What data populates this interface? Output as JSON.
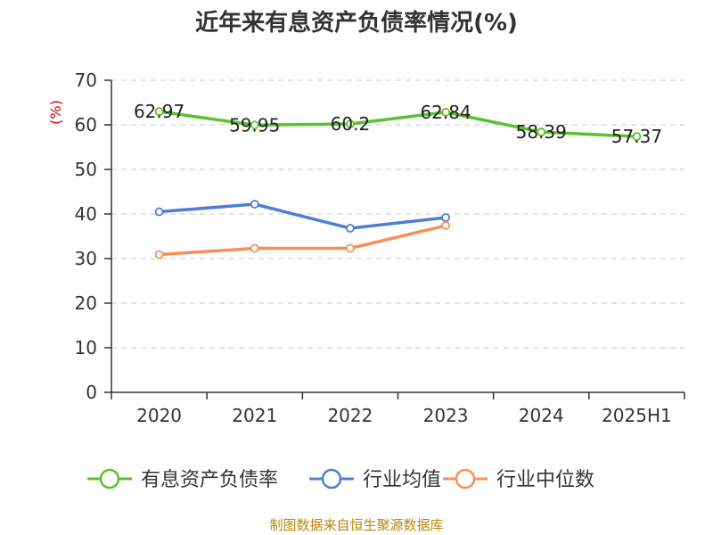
{
  "chart_data": {
    "type": "line",
    "title": "近年来有息资产负债率情况(%)",
    "ylabel": "(%)",
    "xlabel": "",
    "categories": [
      "2020",
      "2021",
      "2022",
      "2023",
      "2024",
      "2025H1"
    ],
    "ylim": [
      0,
      70
    ],
    "yticks": [
      0,
      10,
      20,
      30,
      40,
      50,
      60,
      70
    ],
    "grid": true,
    "legend_position": "bottom",
    "series": [
      {
        "name": "有息资产负债率",
        "color": "#5cc12f",
        "values": [
          62.97,
          59.95,
          60.2,
          62.84,
          58.39,
          57.37
        ],
        "value_labels": [
          "62.97",
          "59.95",
          "60.2",
          "62.84",
          "58.39",
          "57.37"
        ]
      },
      {
        "name": "行业均值",
        "color": "#4e7fd6",
        "values": [
          40.5,
          42.2,
          36.8,
          39.2,
          null,
          null
        ]
      },
      {
        "name": "行业中位数",
        "color": "#f5905a",
        "values": [
          30.9,
          32.3,
          32.3,
          37.4,
          null,
          null
        ]
      }
    ],
    "source": "制图数据来自恒生聚源数据库"
  }
}
